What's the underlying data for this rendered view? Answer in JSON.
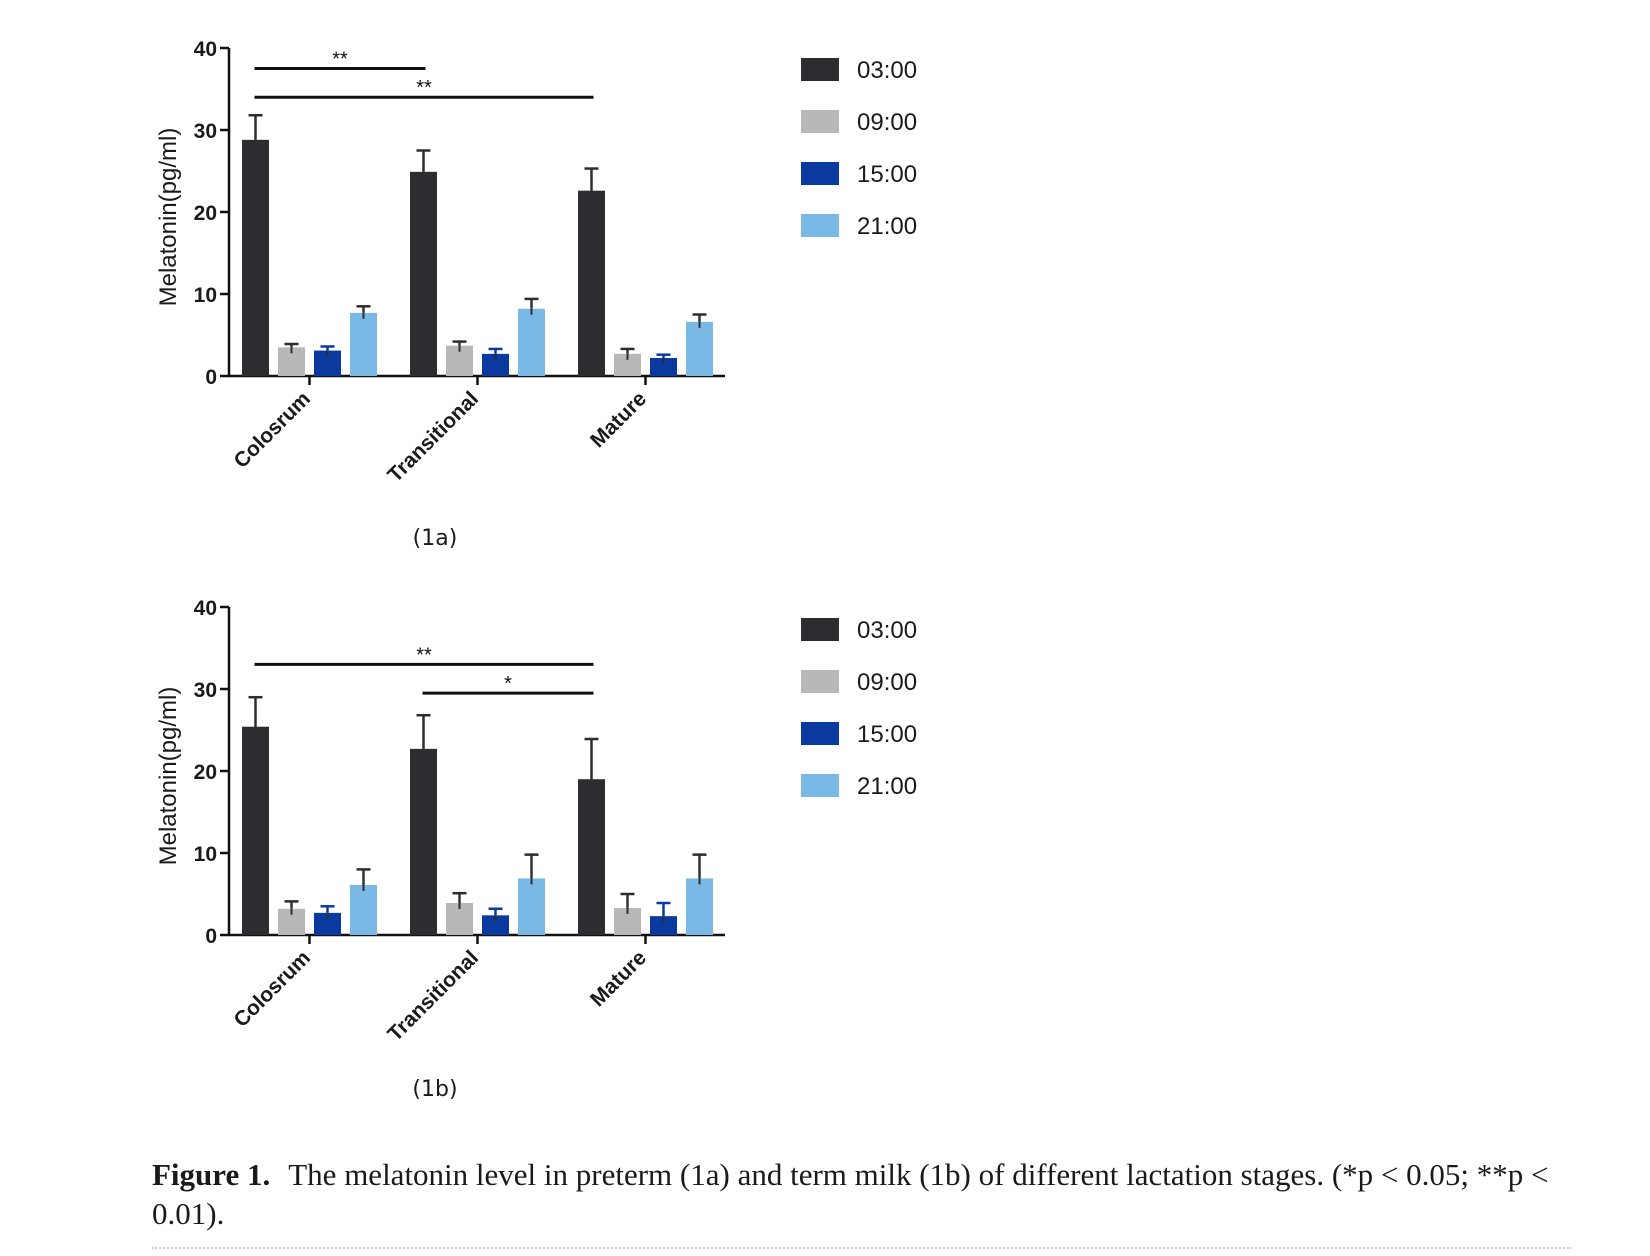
{
  "legend_colors": {
    "03:00": "#2b2d31",
    "09:00": "#b8b8b8",
    "15:00": "#0a3aa0",
    "21:00": "#7ab8e6"
  },
  "chart_data": [
    {
      "type": "bar",
      "panel_label": "(1a)",
      "ylabel": "Melatonin(pg/ml)",
      "xlabel": "",
      "ylim": [
        0,
        40
      ],
      "yticks": [
        "0",
        "10",
        "20",
        "30",
        "40"
      ],
      "categories": [
        "Colosrum",
        "Transitional",
        "Mature"
      ],
      "series": [
        {
          "name": "03:00",
          "values": [
            28.8,
            24.9,
            22.6
          ],
          "errors": [
            3.0,
            2.6,
            2.7
          ]
        },
        {
          "name": "09:00",
          "values": [
            3.5,
            3.7,
            2.7
          ],
          "errors": [
            0.4,
            0.5,
            0.6
          ]
        },
        {
          "name": "15:00",
          "values": [
            3.1,
            2.7,
            2.2
          ],
          "errors": [
            0.5,
            0.6,
            0.4
          ]
        },
        {
          "name": "21:00",
          "values": [
            7.7,
            8.2,
            6.6
          ],
          "errors": [
            0.8,
            1.2,
            0.9
          ]
        }
      ],
      "significance": [
        {
          "from": 0,
          "to": 1,
          "label": "**",
          "y": 37.5
        },
        {
          "from": 0,
          "to": 2,
          "label": "**",
          "y": 34.0
        }
      ],
      "legend_position": "right",
      "grid": false
    },
    {
      "type": "bar",
      "panel_label": "(1b)",
      "ylabel": "Melatonin(pg/ml)",
      "xlabel": "",
      "ylim": [
        0,
        40
      ],
      "yticks": [
        "0",
        "10",
        "20",
        "30",
        "40"
      ],
      "categories": [
        "Colosrum",
        "Transitional",
        "Mature"
      ],
      "series": [
        {
          "name": "03:00",
          "values": [
            25.4,
            22.7,
            19.0
          ],
          "errors": [
            3.6,
            4.1,
            4.9
          ]
        },
        {
          "name": "09:00",
          "values": [
            3.2,
            3.9,
            3.3
          ],
          "errors": [
            0.9,
            1.2,
            1.7
          ]
        },
        {
          "name": "15:00",
          "values": [
            2.7,
            2.4,
            2.3
          ],
          "errors": [
            0.8,
            0.8,
            1.6
          ]
        },
        {
          "name": "21:00",
          "values": [
            6.1,
            6.9,
            6.9
          ],
          "errors": [
            1.9,
            2.9,
            2.9
          ]
        }
      ],
      "significance": [
        {
          "from": 0,
          "to": 2,
          "label": "**",
          "y": 33.0
        },
        {
          "from": 1,
          "to": 2,
          "label": "*",
          "y": 29.5
        }
      ],
      "legend_position": "right",
      "grid": false
    }
  ],
  "caption": {
    "label": "Figure 1.",
    "text": "The melatonin level in preterm (1a) and term milk (1b) of different lactation stages. (*p < 0.05; **p < 0.01)."
  }
}
